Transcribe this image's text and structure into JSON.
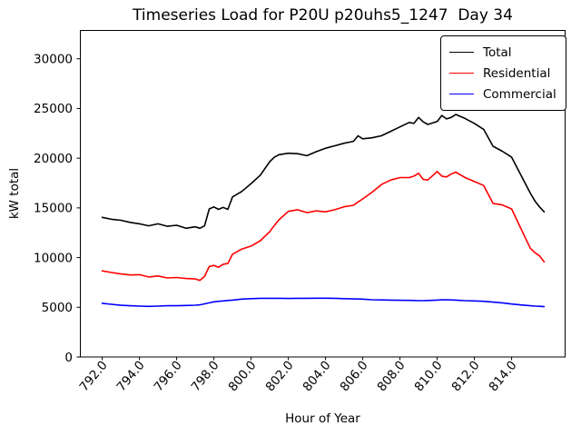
{
  "figure": {
    "background": "#ffffff"
  },
  "chart_data": {
    "type": "line",
    "title": "Timeseries Load for P20U p20uhs5_1247  Day 34",
    "xlabel": "Hour of Year",
    "ylabel": "kW total",
    "grid": false,
    "legend_position": "upper right",
    "x_tick_rotation": 50,
    "xlim": [
      790.8,
      816.9
    ],
    "ylim": [
      0,
      32900
    ],
    "xticks": {
      "values": [
        792,
        794,
        796,
        798,
        800,
        802,
        804,
        806,
        808,
        810,
        812,
        814
      ],
      "labels": [
        "792.0",
        "794.0",
        "796.0",
        "798.0",
        "800.0",
        "802.0",
        "804.0",
        "806.0",
        "808.0",
        "810.0",
        "812.0",
        "814.0"
      ]
    },
    "yticks": {
      "values": [
        0,
        5000,
        10000,
        15000,
        20000,
        25000,
        30000
      ],
      "labels": [
        "0",
        "5000",
        "10000",
        "15000",
        "20000",
        "25000",
        "30000"
      ]
    },
    "x": [
      792.0,
      792.5,
      793.0,
      793.5,
      794.0,
      794.5,
      795.0,
      795.5,
      796.0,
      796.5,
      797.0,
      797.25,
      797.5,
      797.75,
      798.0,
      798.25,
      798.5,
      798.75,
      799.0,
      799.5,
      800.0,
      800.5,
      801.0,
      801.25,
      801.5,
      802.0,
      802.5,
      803.0,
      803.5,
      804.0,
      804.5,
      805.0,
      805.5,
      805.75,
      806.0,
      806.5,
      807.0,
      807.5,
      808.0,
      808.5,
      808.75,
      809.0,
      809.25,
      809.5,
      810.0,
      810.25,
      810.5,
      810.75,
      811.0,
      811.5,
      812.0,
      812.5,
      813.0,
      813.5,
      814.0,
      814.5,
      815.0,
      815.25,
      815.5,
      815.75
    ],
    "series": [
      {
        "name": "Total",
        "color": "#000000",
        "values": [
          14050,
          13850,
          13750,
          13540,
          13400,
          13200,
          13400,
          13150,
          13250,
          12950,
          13100,
          12950,
          13200,
          14900,
          15100,
          14850,
          15050,
          14850,
          16100,
          16650,
          17450,
          18300,
          19650,
          20100,
          20350,
          20500,
          20450,
          20250,
          20650,
          21000,
          21250,
          21500,
          21700,
          22250,
          21950,
          22050,
          22250,
          22700,
          23150,
          23600,
          23500,
          24100,
          23650,
          23400,
          23700,
          24300,
          23950,
          24100,
          24400,
          24000,
          23500,
          22900,
          21200,
          20700,
          20100,
          18300,
          16500,
          15700,
          15100,
          14600
        ]
      },
      {
        "name": "Residential",
        "color": "#ff0000",
        "values": [
          8660,
          8500,
          8350,
          8250,
          8280,
          8050,
          8150,
          7950,
          8000,
          7900,
          7850,
          7700,
          8100,
          9100,
          9210,
          9030,
          9330,
          9400,
          10340,
          10860,
          11160,
          11700,
          12600,
          13230,
          13800,
          14650,
          14815,
          14520,
          14695,
          14605,
          14815,
          15120,
          15260,
          15600,
          15900,
          16580,
          17350,
          17800,
          18050,
          18050,
          18200,
          18475,
          17870,
          17800,
          18660,
          18200,
          18110,
          18400,
          18600,
          18050,
          17650,
          17250,
          15450,
          15300,
          14900,
          12925,
          10950,
          10490,
          10180,
          9575
        ]
      },
      {
        "name": "Commercial",
        "color": "#0000ff",
        "values": [
          5400,
          5300,
          5200,
          5150,
          5120,
          5090,
          5120,
          5150,
          5150,
          5180,
          5210,
          5250,
          5350,
          5450,
          5550,
          5600,
          5640,
          5680,
          5720,
          5825,
          5870,
          5900,
          5900,
          5900,
          5900,
          5890,
          5900,
          5900,
          5910,
          5915,
          5900,
          5870,
          5840,
          5830,
          5820,
          5760,
          5740,
          5720,
          5700,
          5690,
          5680,
          5670,
          5670,
          5680,
          5720,
          5750,
          5760,
          5740,
          5720,
          5670,
          5640,
          5600,
          5520,
          5450,
          5330,
          5240,
          5150,
          5120,
          5100,
          5060
        ]
      }
    ]
  }
}
